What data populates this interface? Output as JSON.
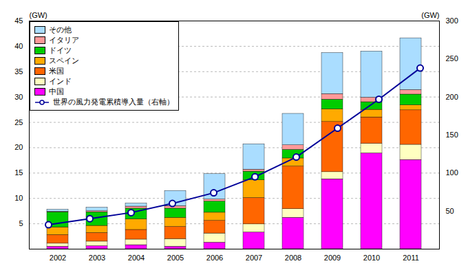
{
  "chart_data": {
    "type": "bar",
    "stacked": true,
    "grid": true,
    "legend": "upper left",
    "categories": [
      "2002",
      "2003",
      "2004",
      "2005",
      "2006",
      "2007",
      "2008",
      "2009",
      "2010",
      "2011"
    ],
    "ylabel": "(GW)",
    "y2label": "(GW)",
    "ylim": [
      0,
      45
    ],
    "yticks": [
      5,
      10,
      15,
      20,
      25,
      30,
      35,
      40,
      45
    ],
    "y2lim": [
      0,
      300
    ],
    "y2ticks": [
      50,
      100,
      150,
      200,
      250,
      300
    ],
    "series": [
      {
        "name": "中国",
        "type": "bar",
        "color": "#FF00FF",
        "values": [
          0.5,
          0.6,
          0.8,
          0.5,
          1.3,
          3.3,
          6.2,
          13.8,
          18.9,
          17.6
        ]
      },
      {
        "name": "インド",
        "type": "bar",
        "color": "#FFFFC0",
        "values": [
          0.6,
          0.9,
          1.1,
          1.5,
          1.8,
          1.6,
          1.7,
          1.4,
          1.9,
          3.0
        ]
      },
      {
        "name": "米国",
        "type": "bar",
        "color": "#FF6600",
        "values": [
          1.7,
          1.7,
          1.9,
          2.4,
          2.5,
          5.2,
          8.4,
          9.9,
          5.2,
          6.8
        ]
      },
      {
        "name": "スペイン",
        "type": "bar",
        "color": "#FFAA00",
        "values": [
          1.5,
          1.4,
          2.1,
          1.8,
          1.6,
          3.5,
          1.6,
          2.5,
          1.5,
          1.0
        ]
      },
      {
        "name": "ドイツ",
        "type": "bar",
        "color": "#00CC00",
        "values": [
          3.0,
          2.7,
          2.1,
          1.8,
          2.2,
          1.7,
          1.7,
          1.9,
          1.5,
          2.1
        ]
      },
      {
        "name": "イタリア",
        "type": "bar",
        "color": "#FF9999",
        "values": [
          0.1,
          0.2,
          0.4,
          0.5,
          0.4,
          0.4,
          0.9,
          1.1,
          0.9,
          0.9
        ]
      },
      {
        "name": "その他",
        "type": "bar",
        "color": "#AADDFF",
        "values": [
          0.4,
          0.7,
          0.6,
          3.0,
          5.0,
          5.0,
          6.2,
          8.1,
          9.1,
          10.2
        ]
      },
      {
        "name": "世界の風力発電累積導入量（右軸）",
        "type": "line",
        "axis": "y2",
        "color": "#000099",
        "marker": "circle",
        "values": [
          32,
          40,
          48,
          60,
          74,
          95,
          121,
          159,
          197,
          238
        ]
      }
    ]
  }
}
